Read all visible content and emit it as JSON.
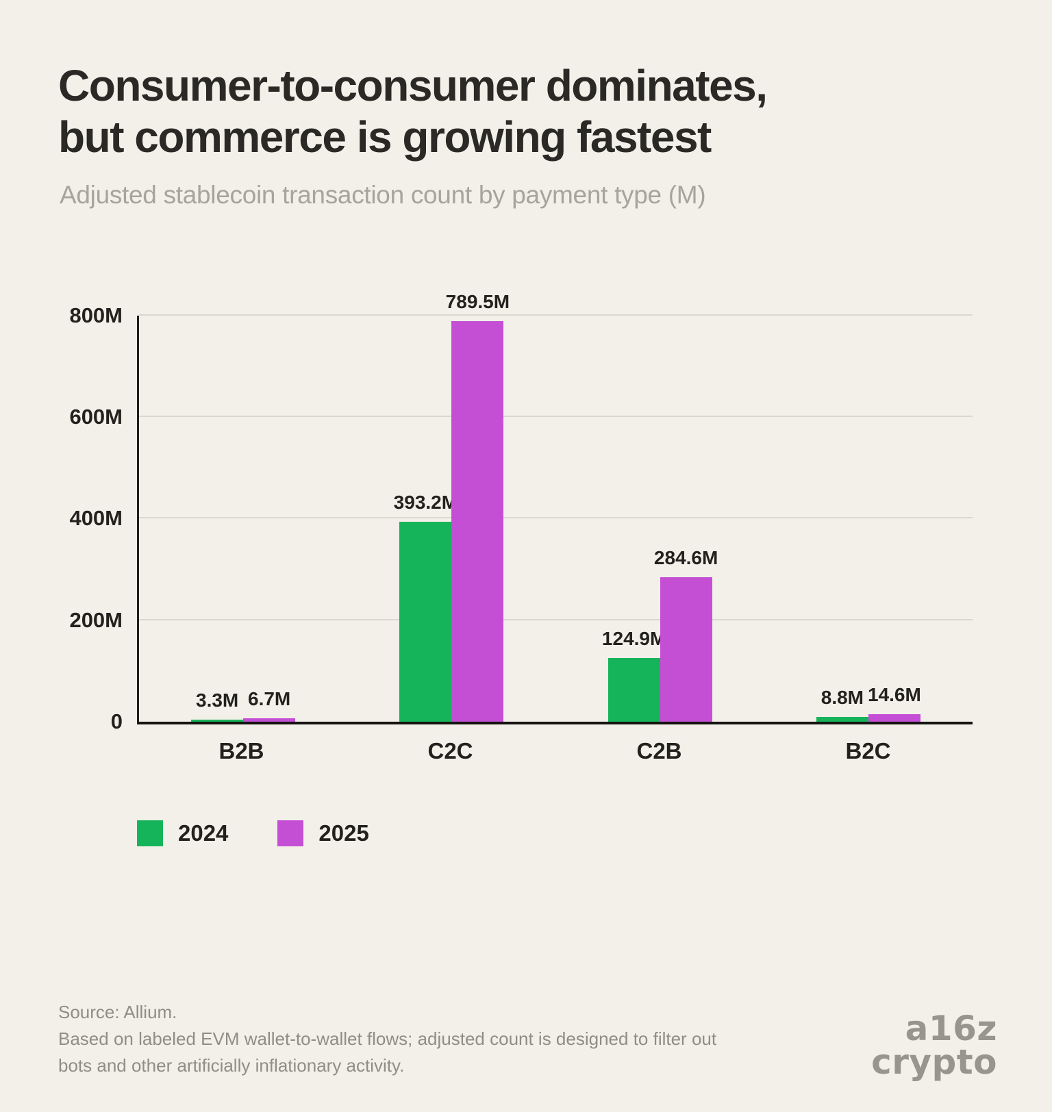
{
  "header": {
    "title_line1": "Consumer-to-consumer dominates,",
    "title_line2": "but commerce is growing fastest",
    "subtitle": "Adjusted stablecoin transaction count by payment type (M)"
  },
  "chart_data": {
    "type": "bar",
    "title": "Consumer-to-consumer dominates, but commerce is growing fastest",
    "subtitle": "Adjusted stablecoin transaction count by payment type (M)",
    "categories": [
      "B2B",
      "C2C",
      "C2B",
      "B2C"
    ],
    "series": [
      {
        "name": "2024",
        "color": "#16b45a",
        "values": [
          3.3,
          393.2,
          124.9,
          8.8
        ],
        "labels": [
          "3.3M",
          "393.2M",
          "124.9M",
          "8.8M"
        ]
      },
      {
        "name": "2025",
        "color": "#c44fd4",
        "values": [
          6.7,
          789.5,
          284.6,
          14.6
        ],
        "labels": [
          "6.7M",
          "789.5M",
          "284.6M",
          "14.6M"
        ]
      }
    ],
    "xlabel": "",
    "ylabel": "",
    "ylim": [
      0,
      800
    ],
    "yticks": [
      0,
      200,
      400,
      600,
      800
    ],
    "ytick_labels": [
      "0",
      "200M",
      "400M",
      "600M",
      "800M"
    ],
    "grid": true,
    "legend_position": "bottom-left"
  },
  "legend": {
    "items": [
      {
        "label": "2024",
        "color": "#16b45a"
      },
      {
        "label": "2025",
        "color": "#c44fd4"
      }
    ]
  },
  "footer": {
    "source": "Source: Allium.",
    "note_line1": "Based on labeled EVM wallet-to-wallet flows; adjusted count is designed to filter out",
    "note_line2": "bots and other artificially inflationary activity.",
    "logo_line1": "a16z",
    "logo_line2": "crypto"
  }
}
